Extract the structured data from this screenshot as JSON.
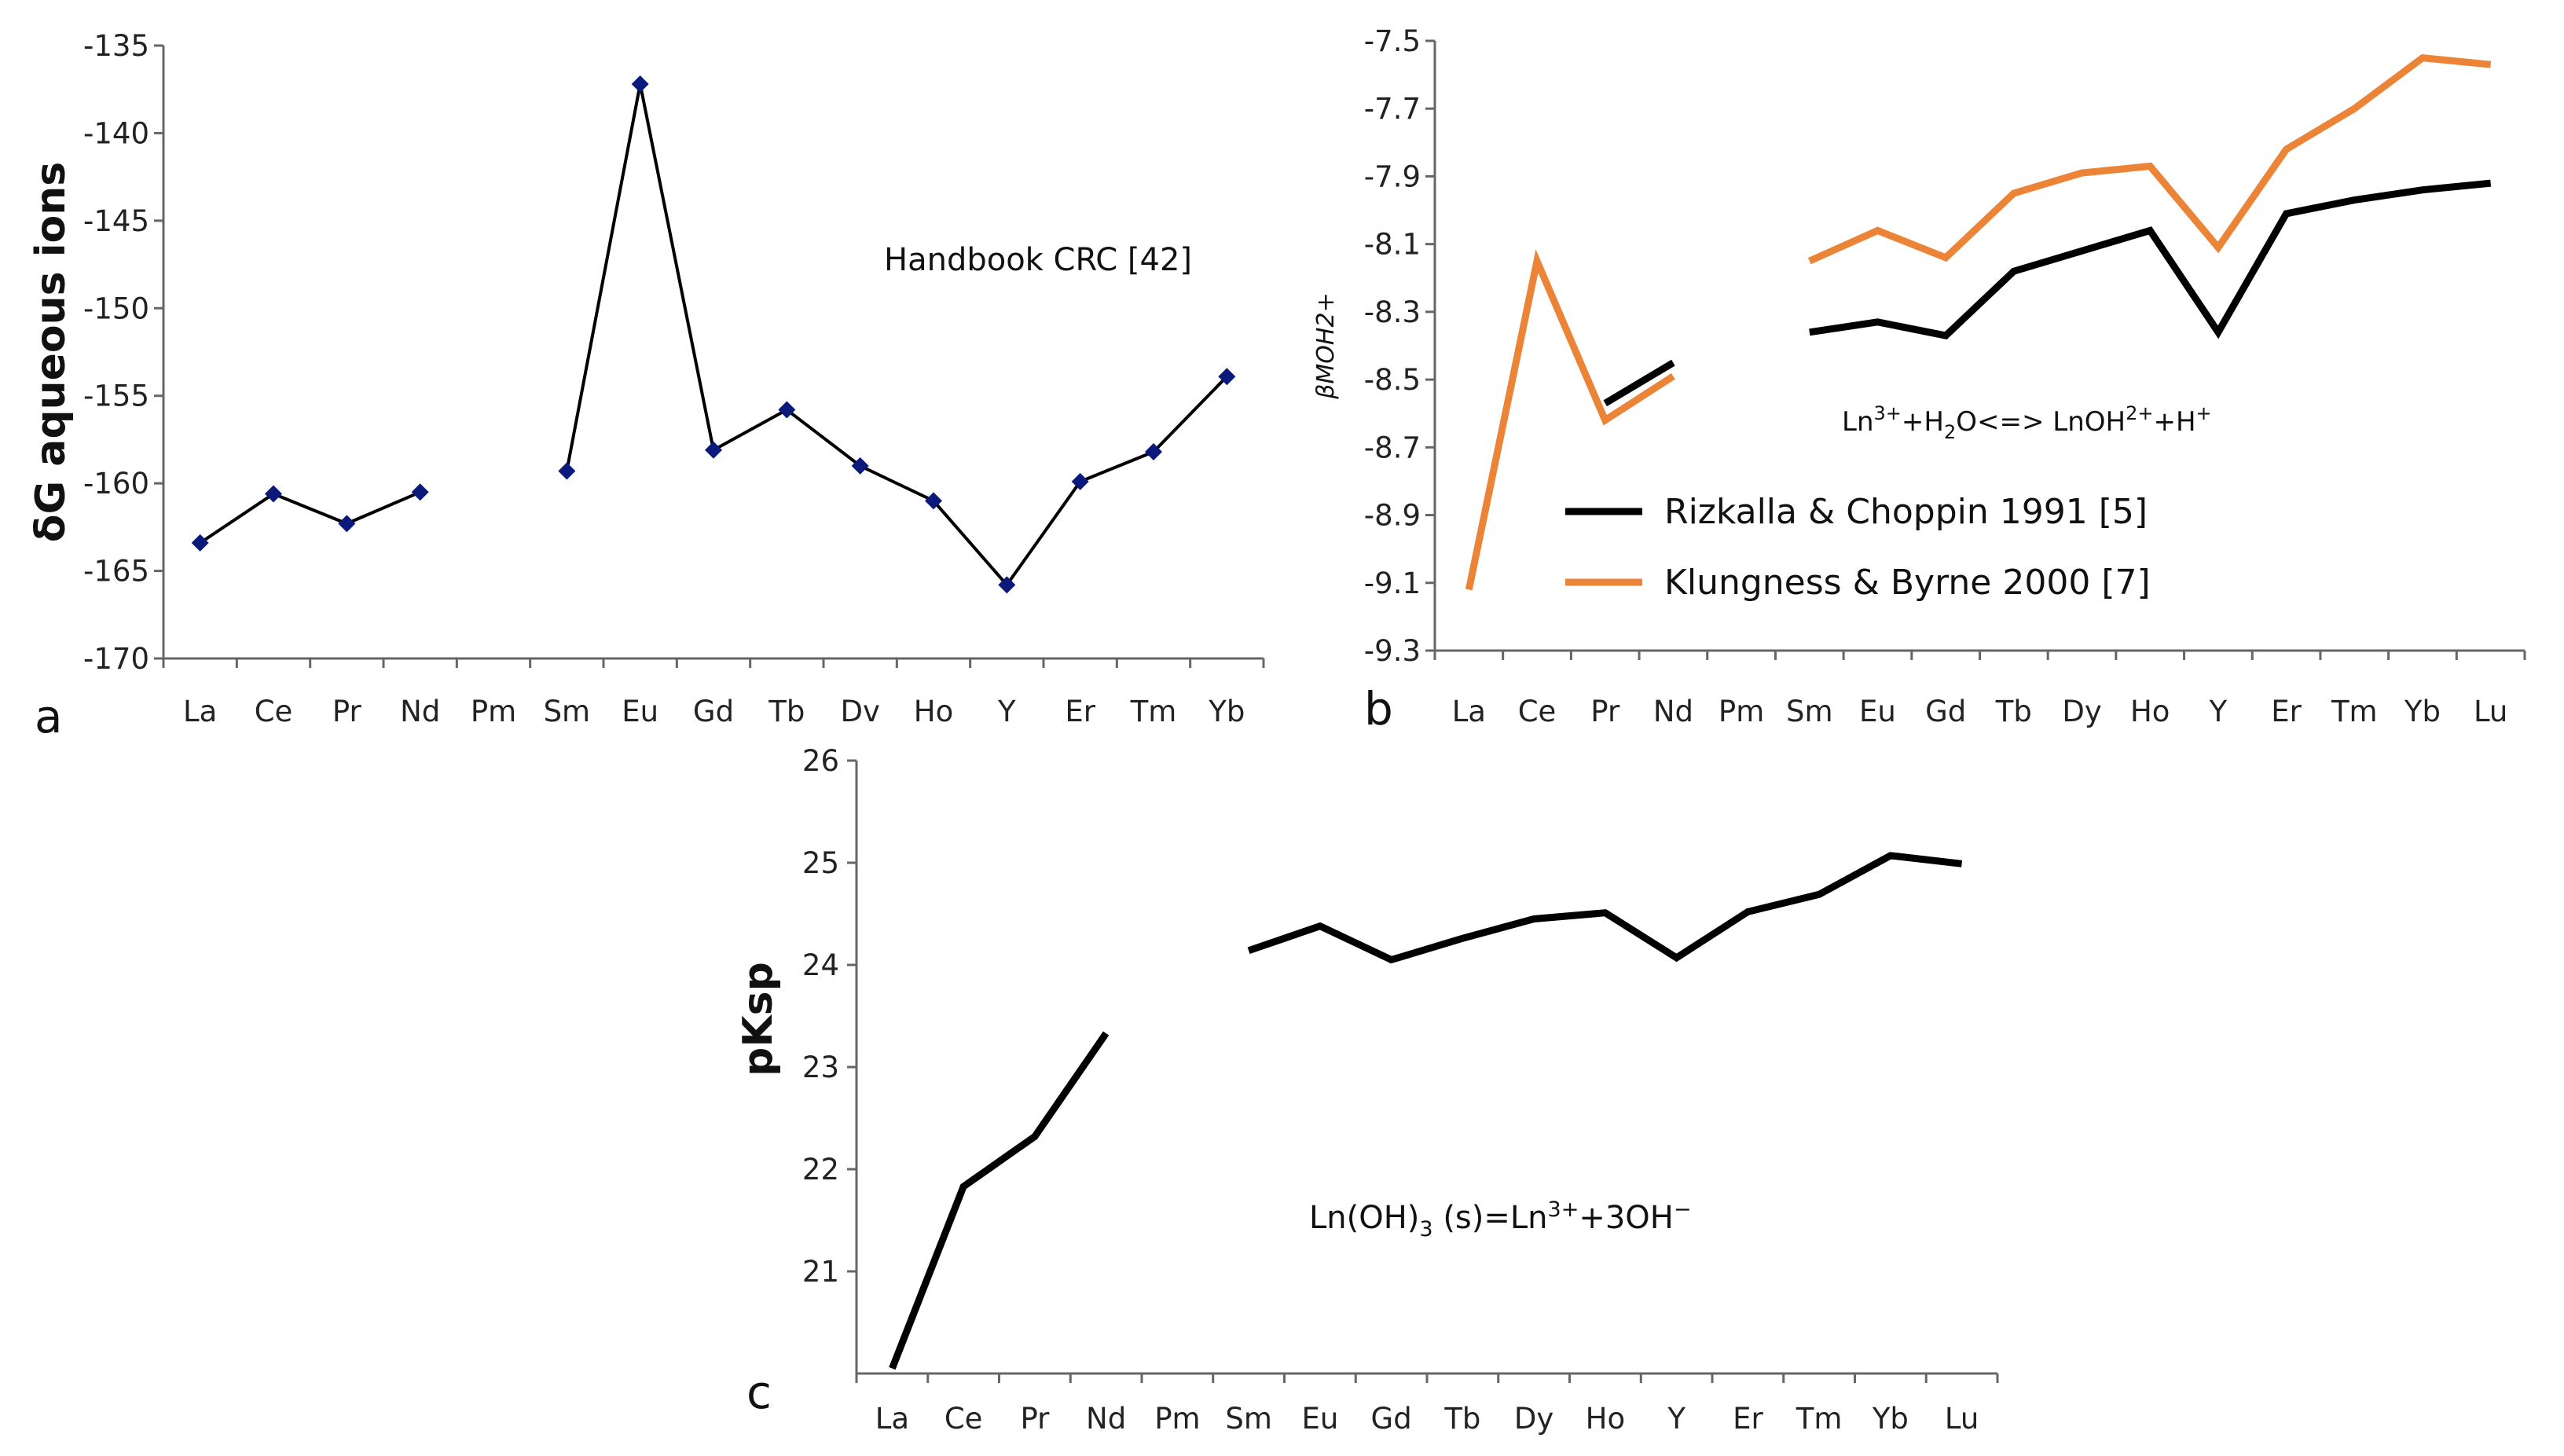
{
  "chart_data": [
    {
      "id": "a",
      "type": "line",
      "panel_label": "a",
      "title": "",
      "xlabel": "",
      "ylabel_prefix": "δ",
      "ylabel_main": "G aqueous ions",
      "ylim": [
        -170,
        -135
      ],
      "yticks": [
        -135,
        -140,
        -145,
        -150,
        -155,
        -160,
        -165,
        -170
      ],
      "categories": [
        "La",
        "Ce",
        "Pr",
        "Nd",
        "Pm",
        "Sm",
        "Eu",
        "Gd",
        "Tb",
        "Dv",
        "Ho",
        "Y",
        "Er",
        "Tm",
        "Yb"
      ],
      "series": [
        {
          "name": "Handbook CRC [42]",
          "color": "#000000",
          "marker_color": "#0b1a7a",
          "marker": "diamond",
          "values": [
            -163.4,
            -160.6,
            -162.3,
            -160.5,
            null,
            -159.3,
            -137.2,
            -158.1,
            -155.8,
            -159.0,
            -161.0,
            -165.8,
            -159.9,
            -158.2,
            -153.9
          ]
        }
      ],
      "annotation": "Handbook CRC [42]"
    },
    {
      "id": "b",
      "type": "line",
      "panel_label": "b",
      "title": "",
      "xlabel": "",
      "ylabel": "βMOH2+",
      "ylim": [
        -9.3,
        -7.5
      ],
      "yticks": [
        "-7.5",
        "-7.7",
        "-7.9",
        "-8.1",
        "-8.3",
        "-8.5",
        "-8.7",
        "-8.9",
        "-9.1",
        "-9.3"
      ],
      "categories": [
        "La",
        "Ce",
        "Pr",
        "Nd",
        "Pm",
        "Sm",
        "Eu",
        "Gd",
        "Tb",
        "Dy",
        "Ho",
        "Y",
        "Er",
        "Tm",
        "Yb",
        "Lu"
      ],
      "series": [
        {
          "name": "Rizkalla & Choppin 1991 [5]",
          "color": "#000000",
          "values": [
            null,
            null,
            -8.57,
            -8.45,
            null,
            -8.36,
            -8.33,
            -8.37,
            -8.18,
            -8.12,
            -8.06,
            -8.36,
            -8.01,
            -7.97,
            -7.94,
            -7.92
          ]
        },
        {
          "name": "Klungness & Byrne 2000 [7]",
          "color": "#ec8437",
          "values": [
            -9.12,
            -8.15,
            -8.62,
            -8.49,
            null,
            -8.15,
            -8.06,
            -8.14,
            -7.95,
            -7.89,
            -7.87,
            -8.11,
            -7.82,
            -7.7,
            -7.55,
            -7.57
          ]
        }
      ],
      "equation": {
        "p1": "Ln",
        "s1": "3+",
        "p2": "+H",
        "b1": "2",
        "p3": "O<=> LnOH",
        "s2": "2+",
        "p4": "+H",
        "s3": "+"
      }
    },
    {
      "id": "c",
      "type": "line",
      "panel_label": "c",
      "title": "",
      "xlabel": "",
      "ylabel": "pKsp",
      "ylim": [
        20,
        26
      ],
      "yticks": [
        26,
        25,
        24,
        23,
        22,
        21
      ],
      "categories": [
        "La",
        "Ce",
        "Pr",
        "Nd",
        "Pm",
        "Sm",
        "Eu",
        "Gd",
        "Tb",
        "Dy",
        "Ho",
        "Y",
        "Er",
        "Tm",
        "Yb",
        "Lu"
      ],
      "series": [
        {
          "name": "pKsp",
          "color": "#000000",
          "values": [
            20.05,
            21.83,
            22.32,
            23.33,
            null,
            24.14,
            24.38,
            24.05,
            24.26,
            24.45,
            24.51,
            24.07,
            24.52,
            24.69,
            25.07,
            24.99
          ]
        }
      ],
      "equation": {
        "p1": "Ln(OH)",
        "b1": "3",
        "p2": " (s)=Ln",
        "s1": "3+",
        "p3": "+3OH",
        "s2": "−"
      }
    }
  ]
}
